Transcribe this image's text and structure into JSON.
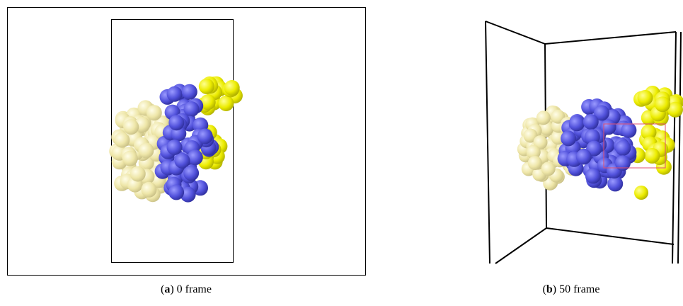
{
  "panels": [
    {
      "caption": [
        "(",
        "a",
        ") 0 frame"
      ]
    },
    {
      "caption": [
        "(",
        "b",
        ") 50 frame"
      ]
    }
  ]
}
